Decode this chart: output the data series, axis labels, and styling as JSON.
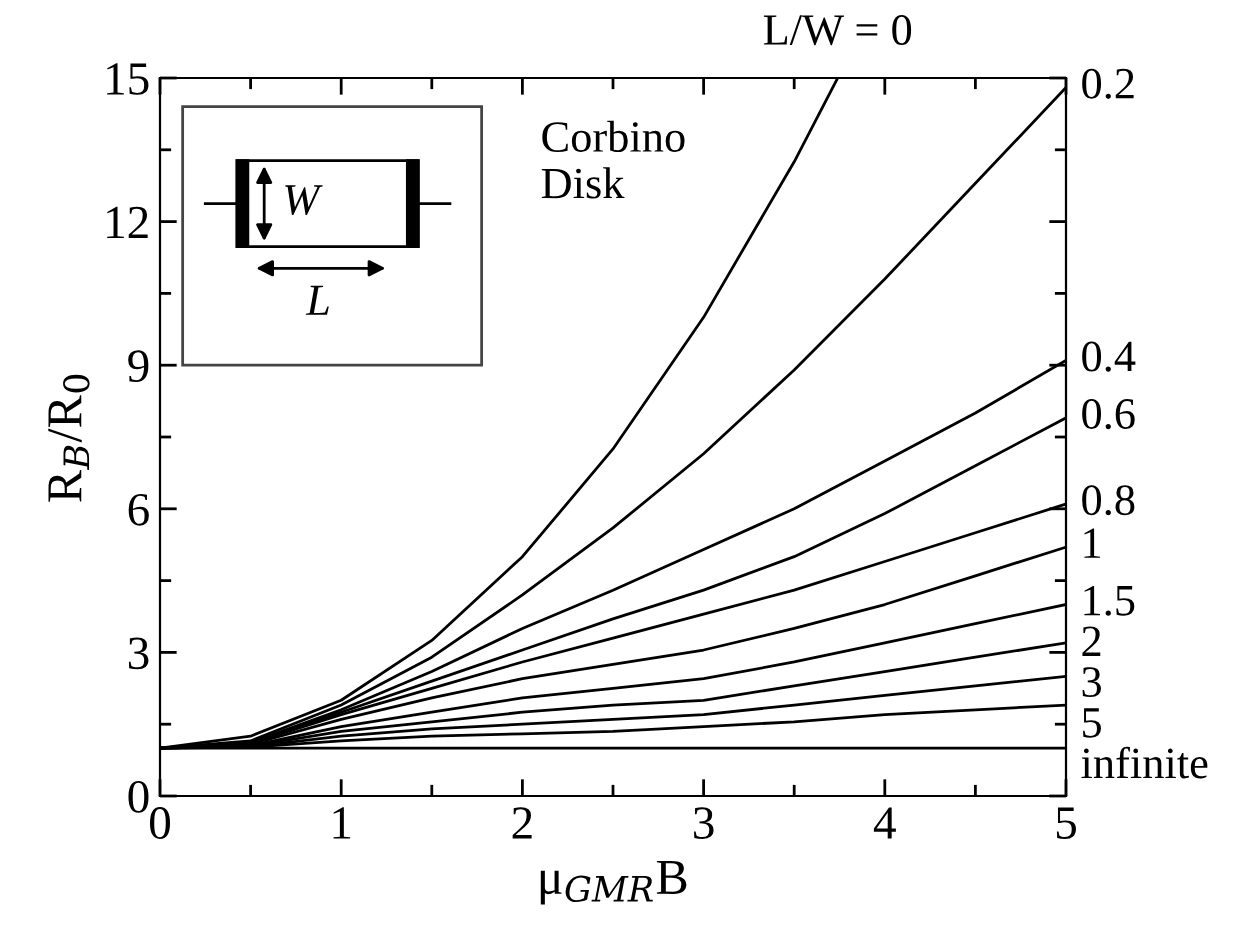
{
  "chart_data": {
    "type": "line",
    "xlabel": "μ$_{GMR}$B",
    "ylabel": "R$_{B}$/R$_{0}$",
    "x": [
      0,
      0.5,
      1,
      1.5,
      2,
      2.5,
      3,
      3.5,
      4,
      4.5,
      5
    ],
    "series": [
      {
        "name": "L/W = 0",
        "color": "#000000",
        "x": [
          0,
          0.5,
          1,
          1.5,
          2,
          2.5,
          3,
          3.5,
          3.74
        ],
        "values": [
          1,
          1.25,
          2,
          3.25,
          5,
          7.25,
          10,
          13.25,
          15
        ]
      },
      {
        "name": "0.2",
        "color": "#000000",
        "values": [
          1,
          1.15,
          1.9,
          2.9,
          4.2,
          5.6,
          7.15,
          8.9,
          10.8,
          12.8,
          14.8
        ]
      },
      {
        "name": "0.4",
        "color": "#000000",
        "values": [
          1,
          1.12,
          1.8,
          2.6,
          3.5,
          4.3,
          5.15,
          6.0,
          7.0,
          8.0,
          9.1
        ]
      },
      {
        "name": "0.6",
        "color": "#000000",
        "values": [
          1,
          1.1,
          1.75,
          2.4,
          3.05,
          3.7,
          4.3,
          5.0,
          5.9,
          6.9,
          7.9
        ]
      },
      {
        "name": "0.8",
        "color": "#000000",
        "values": [
          1,
          1.1,
          1.7,
          2.25,
          2.8,
          3.3,
          3.8,
          4.3,
          4.9,
          5.5,
          6.1
        ]
      },
      {
        "name": "1",
        "color": "#000000",
        "values": [
          1,
          1.08,
          1.6,
          2.05,
          2.45,
          2.75,
          3.05,
          3.5,
          4.0,
          4.6,
          5.2
        ]
      },
      {
        "name": "1.5",
        "color": "#000000",
        "values": [
          1,
          1.05,
          1.45,
          1.75,
          2.05,
          2.25,
          2.45,
          2.8,
          3.2,
          3.6,
          4.0
        ]
      },
      {
        "name": "2",
        "color": "#000000",
        "values": [
          1,
          1.04,
          1.35,
          1.55,
          1.75,
          1.9,
          2.0,
          2.3,
          2.6,
          2.9,
          3.2
        ]
      },
      {
        "name": "3",
        "color": "#000000",
        "values": [
          1,
          1.03,
          1.25,
          1.4,
          1.5,
          1.6,
          1.7,
          1.9,
          2.1,
          2.3,
          2.5
        ]
      },
      {
        "name": "5",
        "color": "#000000",
        "values": [
          1,
          1.02,
          1.15,
          1.25,
          1.3,
          1.35,
          1.45,
          1.55,
          1.7,
          1.8,
          1.9
        ]
      },
      {
        "name": "infinite",
        "color": "#000000",
        "values": [
          1,
          1,
          1,
          1,
          1,
          1,
          1,
          1,
          1,
          1,
          1
        ]
      }
    ],
    "xlim": [
      0,
      5
    ],
    "ylim": [
      0,
      15
    ],
    "xticks": [
      0,
      {
        "value": 0.5,
        "label": null
      },
      1,
      {
        "value": 1.5,
        "label": null
      },
      2,
      {
        "value": 2.5,
        "label": null
      },
      3,
      {
        "value": 3.5,
        "label": null
      },
      4,
      {
        "value": 4.5,
        "label": null
      },
      5
    ],
    "yticks": [
      0,
      {
        "value": 1.5,
        "label": null
      },
      3,
      {
        "value": 4.5,
        "label": null
      },
      6,
      {
        "value": 7.5,
        "label": null
      },
      9,
      {
        "value": 10.5,
        "label": null
      },
      12,
      {
        "value": 13.5,
        "label": null
      },
      15
    ],
    "annotations": [
      "Corbino\nDisk",
      "W",
      "L"
    ],
    "grid": false,
    "legend": "right",
    "marker": "none",
    "line_style": "solid"
  }
}
